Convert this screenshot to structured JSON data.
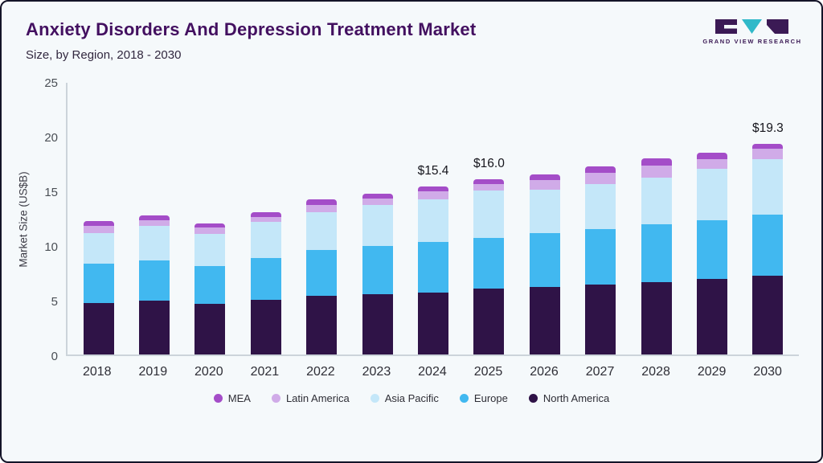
{
  "header": {
    "title": "Anxiety Disorders And Depression Treatment Market",
    "subtitle": "Size, by Region, 2018 - 2030",
    "logo_text": "GRAND VIEW RESEARCH"
  },
  "colors": {
    "title": "#431060",
    "background": "#f5f9fb",
    "axis": "#ccd4da",
    "logo_dark": "#3b1a55",
    "logo_teal": "#30b9c9"
  },
  "chart_data": {
    "type": "bar",
    "stacked": true,
    "title": "Anxiety Disorders And Depression Treatment Market Size, by Region, 2018 - 2030",
    "xlabel": "",
    "ylabel": "Market Size (US$B)",
    "ylim": [
      0,
      25
    ],
    "yticks": [
      0,
      5,
      10,
      15,
      20,
      25
    ],
    "grid": false,
    "legend_position": "bottom",
    "categories": [
      "2018",
      "2019",
      "2020",
      "2021",
      "2022",
      "2023",
      "2024",
      "2025",
      "2026",
      "2027",
      "2028",
      "2029",
      "2030"
    ],
    "series": [
      {
        "name": "North America",
        "color": "#2f1347",
        "values": [
          4.7,
          4.9,
          4.6,
          5.0,
          5.4,
          5.5,
          5.7,
          6.0,
          6.2,
          6.4,
          6.6,
          6.9,
          7.2
        ]
      },
      {
        "name": "Europe",
        "color": "#41b8f0",
        "values": [
          3.6,
          3.7,
          3.5,
          3.8,
          4.2,
          4.4,
          4.6,
          4.7,
          4.9,
          5.1,
          5.3,
          5.4,
          5.6
        ]
      },
      {
        "name": "Asia Pacific",
        "color": "#c4e7f9",
        "values": [
          2.8,
          3.2,
          2.9,
          3.3,
          3.4,
          3.8,
          3.9,
          4.3,
          4.0,
          4.1,
          4.3,
          4.7,
          5.1
        ]
      },
      {
        "name": "Latin America",
        "color": "#d0abe8",
        "values": [
          0.7,
          0.5,
          0.6,
          0.5,
          0.7,
          0.6,
          0.7,
          0.6,
          0.9,
          1.0,
          1.1,
          0.9,
          0.9
        ]
      },
      {
        "name": "MEA",
        "color": "#a44dc8",
        "values": [
          0.4,
          0.4,
          0.4,
          0.4,
          0.5,
          0.4,
          0.5,
          0.4,
          0.5,
          0.6,
          0.6,
          0.6,
          0.5
        ]
      }
    ],
    "totals": [
      12.2,
      12.7,
      12.0,
      13.0,
      14.2,
      14.7,
      15.4,
      16.0,
      16.5,
      17.2,
      17.9,
      18.5,
      19.3
    ],
    "bar_labels": {
      "2024": "$15.4",
      "2025": "$16.0",
      "2030": "$19.3"
    }
  },
  "legend": {
    "items": [
      {
        "label": "MEA",
        "color": "#a44dc8"
      },
      {
        "label": "Latin America",
        "color": "#d0abe8"
      },
      {
        "label": "Asia Pacific",
        "color": "#c4e7f9"
      },
      {
        "label": "Europe",
        "color": "#41b8f0"
      },
      {
        "label": "North America",
        "color": "#2f1347"
      }
    ]
  }
}
